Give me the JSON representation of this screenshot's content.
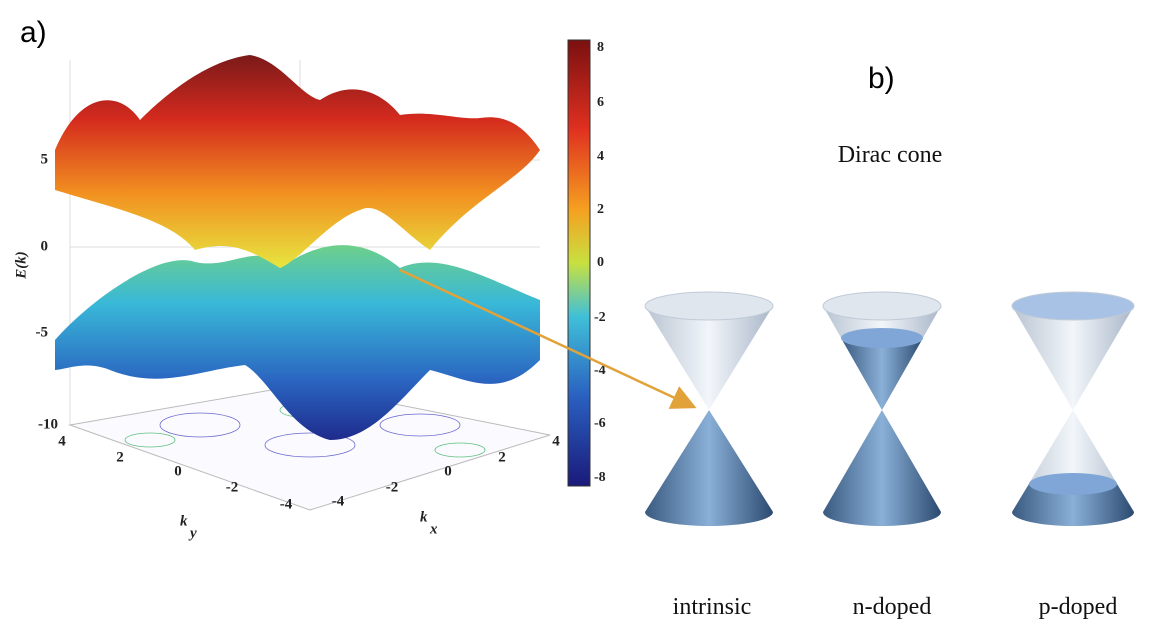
{
  "panel_a": {
    "label": "a)",
    "z_label": "E(k)",
    "z_ticks": [
      "5",
      "0",
      "-5",
      "-10"
    ],
    "ky_ticks": [
      "4",
      "2",
      "0",
      "-2",
      "-4"
    ],
    "kx_ticks": [
      "-4",
      "-2",
      "0",
      "2",
      "4"
    ],
    "ky_label": {
      "base": "k",
      "sub": "y"
    },
    "kx_label": {
      "base": "k",
      "sub": "x"
    },
    "colorbar_ticks": [
      "8",
      "6",
      "4",
      "2",
      "0",
      "-2",
      "-4",
      "-6",
      "-8"
    ]
  },
  "panel_b": {
    "label": "b)",
    "title": "Dirac cone",
    "cones": [
      "intrinsic",
      "n-doped",
      "p-doped"
    ]
  }
}
